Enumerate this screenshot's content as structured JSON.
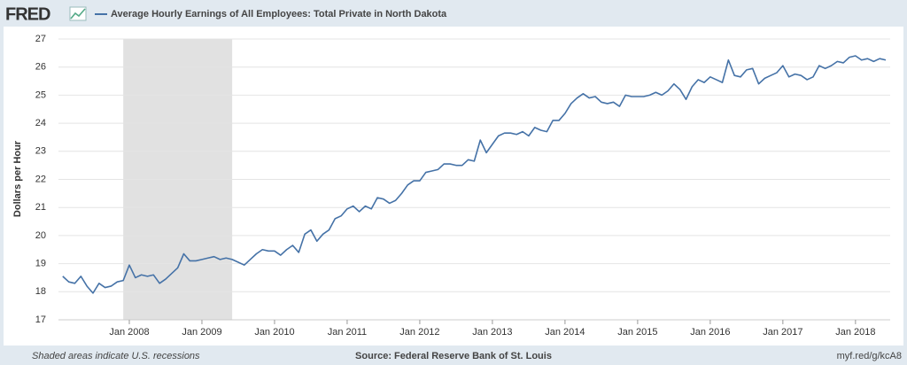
{
  "chart_data": {
    "type": "line",
    "brand": "FRED",
    "y_label": "Dollars per Hour",
    "footer_left": "Shaded areas indicate U.S. recessions",
    "footer_center": "Source: Federal Reserve Bank of St. Louis",
    "footer_right": "myf.red/g/kcA8",
    "recessions": [
      {
        "start": "2007-12",
        "end": "2009-06"
      }
    ],
    "xlim": [
      "2007-01",
      "2018-06"
    ],
    "xticks": [
      {
        "value": "2008-01",
        "label": "Jan 2008"
      },
      {
        "value": "2009-01",
        "label": "Jan 2009"
      },
      {
        "value": "2010-01",
        "label": "Jan 2010"
      },
      {
        "value": "2011-01",
        "label": "Jan 2011"
      },
      {
        "value": "2012-01",
        "label": "Jan 2012"
      },
      {
        "value": "2013-01",
        "label": "Jan 2013"
      },
      {
        "value": "2014-01",
        "label": "Jan 2014"
      },
      {
        "value": "2015-01",
        "label": "Jan 2015"
      },
      {
        "value": "2016-01",
        "label": "Jan 2016"
      },
      {
        "value": "2017-01",
        "label": "Jan 2017"
      },
      {
        "value": "2018-01",
        "label": "Jan 2018"
      }
    ],
    "ylim": [
      17,
      27
    ],
    "yticks": [
      17,
      18,
      19,
      20,
      21,
      22,
      23,
      24,
      25,
      26,
      27
    ],
    "grid": true,
    "x": [
      "2007-02",
      "2007-03",
      "2007-04",
      "2007-05",
      "2007-06",
      "2007-07",
      "2007-08",
      "2007-09",
      "2007-10",
      "2007-11",
      "2007-12",
      "2008-01",
      "2008-02",
      "2008-03",
      "2008-04",
      "2008-05",
      "2008-06",
      "2008-07",
      "2008-08",
      "2008-09",
      "2008-10",
      "2008-11",
      "2008-12",
      "2009-01",
      "2009-02",
      "2009-03",
      "2009-04",
      "2009-05",
      "2009-06",
      "2009-07",
      "2009-08",
      "2009-09",
      "2009-10",
      "2009-11",
      "2009-12",
      "2010-01",
      "2010-02",
      "2010-03",
      "2010-04",
      "2010-05",
      "2010-06",
      "2010-07",
      "2010-08",
      "2010-09",
      "2010-10",
      "2010-11",
      "2010-12",
      "2011-01",
      "2011-02",
      "2011-03",
      "2011-04",
      "2011-05",
      "2011-06",
      "2011-07",
      "2011-08",
      "2011-09",
      "2011-10",
      "2011-11",
      "2011-12",
      "2012-01",
      "2012-02",
      "2012-03",
      "2012-04",
      "2012-05",
      "2012-06",
      "2012-07",
      "2012-08",
      "2012-09",
      "2012-10",
      "2012-11",
      "2012-12",
      "2013-01",
      "2013-02",
      "2013-03",
      "2013-04",
      "2013-05",
      "2013-06",
      "2013-07",
      "2013-08",
      "2013-09",
      "2013-10",
      "2013-11",
      "2013-12",
      "2014-01",
      "2014-02",
      "2014-03",
      "2014-04",
      "2014-05",
      "2014-06",
      "2014-07",
      "2014-08",
      "2014-09",
      "2014-10",
      "2014-11",
      "2014-12",
      "2015-01",
      "2015-02",
      "2015-03",
      "2015-04",
      "2015-05",
      "2015-06",
      "2015-07",
      "2015-08",
      "2015-09",
      "2015-10",
      "2015-11",
      "2015-12",
      "2016-01",
      "2016-02",
      "2016-03",
      "2016-04",
      "2016-05",
      "2016-06",
      "2016-07",
      "2016-08",
      "2016-09",
      "2016-10",
      "2016-11",
      "2016-12",
      "2017-01",
      "2017-02",
      "2017-03",
      "2017-04",
      "2017-05",
      "2017-06",
      "2017-07",
      "2017-08",
      "2017-09",
      "2017-10",
      "2017-11",
      "2017-12",
      "2018-01",
      "2018-02",
      "2018-03",
      "2018-04",
      "2018-05",
      "2018-06"
    ],
    "series": [
      {
        "name": "Average Hourly Earnings of All Employees: Total Private in North Dakota",
        "color": "#4572a7",
        "values": [
          18.55,
          18.35,
          18.3,
          18.55,
          18.2,
          17.95,
          18.3,
          18.15,
          18.2,
          18.35,
          18.4,
          18.95,
          18.5,
          18.6,
          18.55,
          18.6,
          18.3,
          18.45,
          18.65,
          18.85,
          19.35,
          19.1,
          19.1,
          19.15,
          19.2,
          19.25,
          19.15,
          19.2,
          19.15,
          19.05,
          18.95,
          19.15,
          19.35,
          19.5,
          19.45,
          19.45,
          19.3,
          19.5,
          19.65,
          19.4,
          20.05,
          20.2,
          19.8,
          20.05,
          20.2,
          20.6,
          20.7,
          20.95,
          21.05,
          20.85,
          21.05,
          20.95,
          21.35,
          21.3,
          21.15,
          21.25,
          21.5,
          21.8,
          21.95,
          21.95,
          22.25,
          22.3,
          22.35,
          22.55,
          22.55,
          22.5,
          22.5,
          22.7,
          22.65,
          23.4,
          22.95,
          23.25,
          23.55,
          23.65,
          23.65,
          23.6,
          23.7,
          23.55,
          23.85,
          23.75,
          23.7,
          24.1,
          24.1,
          24.35,
          24.7,
          24.9,
          25.05,
          24.9,
          24.95,
          24.75,
          24.7,
          24.75,
          24.6,
          25.0,
          24.95,
          24.95,
          24.95,
          25.0,
          25.1,
          25.0,
          25.15,
          25.4,
          25.2,
          24.85,
          25.3,
          25.55,
          25.45,
          25.65,
          25.55,
          25.45,
          26.25,
          25.7,
          25.65,
          25.9,
          25.95,
          25.4,
          25.6,
          25.7,
          25.8,
          26.05,
          25.65,
          25.75,
          25.7,
          25.55,
          25.65,
          26.05,
          25.95,
          26.05,
          26.2,
          26.15,
          26.35,
          26.4,
          26.25,
          26.3,
          26.2,
          26.3,
          26.25
        ]
      }
    ]
  }
}
